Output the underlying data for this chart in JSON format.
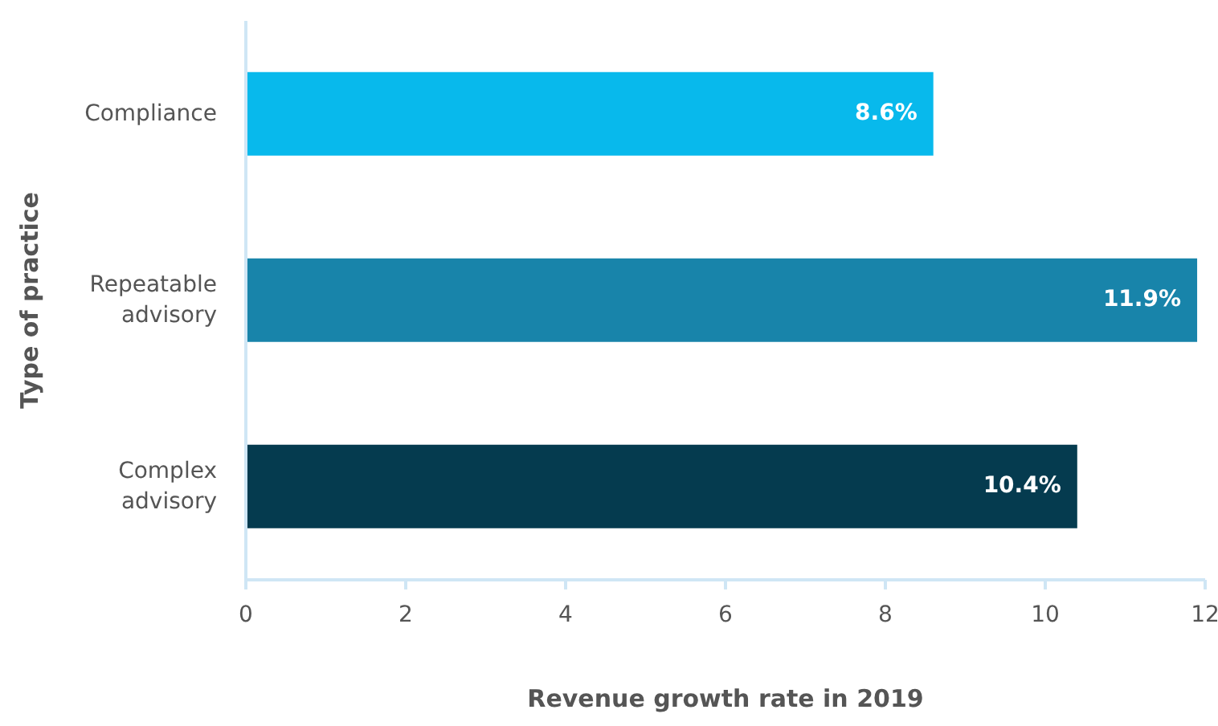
{
  "chart_data": {
    "type": "bar",
    "orientation": "horizontal",
    "xlabel": "Revenue growth rate in 2019",
    "ylabel": "Type of practice",
    "categories": [
      "Compliance",
      "Repeatable advisory",
      "Complex advisory"
    ],
    "values": [
      8.6,
      11.9,
      10.4
    ],
    "colors": [
      "#08b9ec",
      "#1884aa",
      "#053b4f"
    ],
    "value_labels": [
      "8.6%",
      "11.9%",
      "10.4%"
    ],
    "xlim": [
      0,
      12
    ],
    "xticks": [
      0,
      2,
      4,
      6,
      8,
      10,
      12
    ],
    "grid": false,
    "legend": false
  }
}
